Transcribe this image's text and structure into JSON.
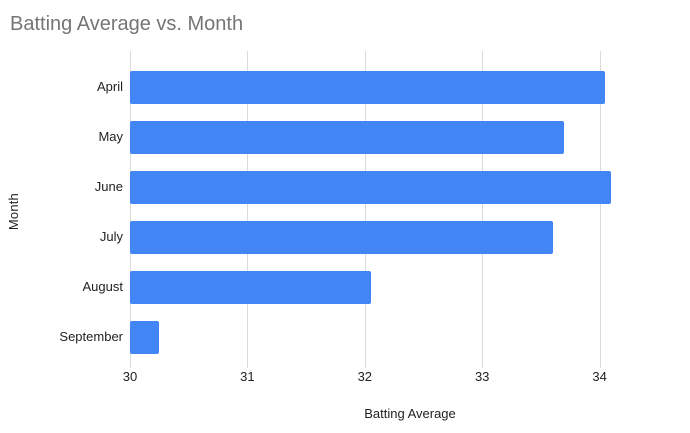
{
  "chart_data": {
    "type": "bar",
    "orientation": "horizontal",
    "title": "Batting Average vs. Month",
    "xlabel": "Batting Average",
    "ylabel": "Month",
    "categories": [
      "April",
      "May",
      "June",
      "July",
      "August",
      "September"
    ],
    "values": [
      34.05,
      33.7,
      34.1,
      33.6,
      32.05,
      30.25
    ],
    "xticks": [
      30,
      31,
      32,
      33,
      34
    ],
    "xlim": [
      30,
      34.77
    ],
    "grid": true,
    "legend": "none",
    "colors": {
      "bar": "#4285f4",
      "gridline": "#dadada",
      "title_text": "#757575",
      "axis_text": "#222222",
      "background": "#ffffff"
    }
  }
}
